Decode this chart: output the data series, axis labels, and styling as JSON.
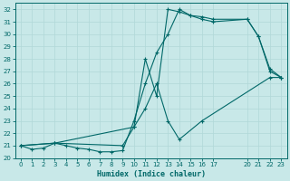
{
  "xlabel": "Humidex (Indice chaleur)",
  "bg_color": "#c8e8e8",
  "grid_color": "#b0d8d8",
  "line_color": "#006868",
  "xlim": [
    -0.5,
    23.5
  ],
  "ylim": [
    20,
    32.5
  ],
  "xticks": [
    0,
    1,
    2,
    3,
    4,
    5,
    6,
    7,
    8,
    9,
    10,
    11,
    12,
    13,
    14,
    15,
    16,
    17,
    20,
    21,
    22,
    23
  ],
  "yticks": [
    20,
    21,
    22,
    23,
    24,
    25,
    26,
    27,
    28,
    29,
    30,
    31,
    32
  ],
  "line1_x": [
    0,
    1,
    2,
    3,
    4,
    5,
    6,
    7,
    8,
    9,
    10,
    11,
    12,
    13,
    14,
    15,
    16,
    17,
    20,
    21,
    22,
    23
  ],
  "line1_y": [
    21,
    20.7,
    20.8,
    21.2,
    21.0,
    20.8,
    20.7,
    20.5,
    20.5,
    20.6,
    23.0,
    26.0,
    28.5,
    30.0,
    32.0,
    31.5,
    31.2,
    31.0,
    31.2,
    29.8,
    27.0,
    26.5
  ],
  "line2_x": [
    0,
    3,
    10,
    11,
    12,
    13,
    14,
    15,
    16,
    17,
    20,
    21,
    22,
    23
  ],
  "line2_y": [
    21,
    21.2,
    22.5,
    28.0,
    25.0,
    32.0,
    31.8,
    31.5,
    31.4,
    31.2,
    31.2,
    29.8,
    27.2,
    26.5
  ],
  "line3_x": [
    0,
    3,
    9,
    10,
    11,
    12,
    13,
    14,
    16,
    22,
    23
  ],
  "line3_y": [
    21,
    21.2,
    21.0,
    22.5,
    24.0,
    26.0,
    23.0,
    21.5,
    23.0,
    26.5,
    26.5
  ]
}
